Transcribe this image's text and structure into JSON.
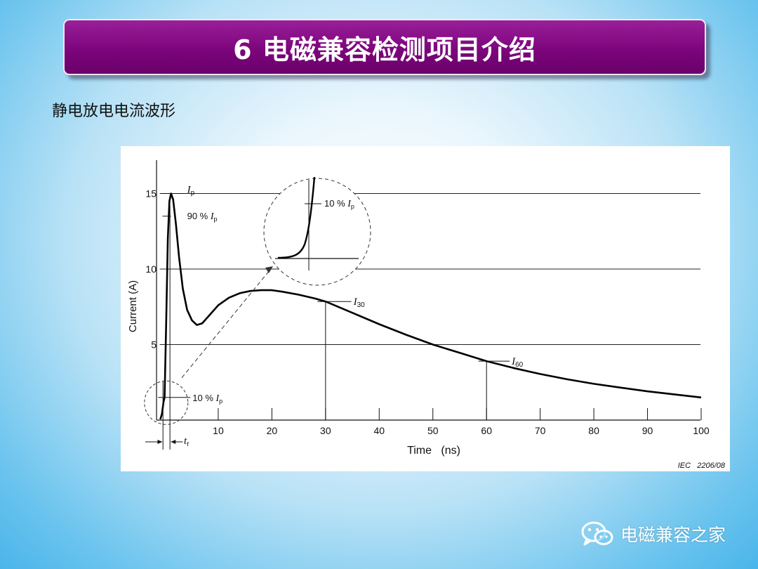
{
  "slide": {
    "title": "6 电磁兼容检测项目介绍",
    "subtitle": "静电放电电流波形",
    "watermark_text": "电磁兼容之家",
    "watermark_icon": "wechat-icon",
    "title_bg": "#7c057c"
  },
  "chart_data": {
    "type": "line",
    "xlabel": "Time   (ns)",
    "ylabel": "Current   (A)",
    "xlim": [
      -3,
      100
    ],
    "ylim": [
      0,
      17
    ],
    "x_ticks": [
      10,
      20,
      30,
      40,
      50,
      60,
      70,
      80,
      90,
      100
    ],
    "y_ticks": [
      5,
      10,
      15
    ],
    "grid_y": [
      5,
      10,
      15
    ],
    "series": [
      {
        "x": [
          -0.8,
          -0.5,
          -0.2,
          0,
          0.3,
          0.6,
          0.9,
          1.2,
          1.6,
          2.1,
          2.7,
          3.4,
          4.2,
          5.1,
          6.0,
          7.0,
          8.0,
          10,
          12,
          14,
          16,
          18,
          20,
          22,
          25,
          28,
          30,
          35,
          40,
          45,
          50,
          55,
          60,
          65,
          70,
          75,
          80,
          85,
          90,
          95,
          100
        ],
        "y": [
          0.05,
          0.4,
          1.2,
          1.5,
          6.5,
          12.0,
          14.5,
          15.0,
          14.6,
          13.0,
          10.8,
          8.7,
          7.3,
          6.6,
          6.3,
          6.4,
          6.8,
          7.6,
          8.1,
          8.4,
          8.55,
          8.6,
          8.6,
          8.5,
          8.3,
          8.05,
          7.85,
          7.1,
          6.35,
          5.65,
          5.0,
          4.45,
          3.9,
          3.45,
          3.05,
          2.7,
          2.4,
          2.15,
          1.9,
          1.7,
          1.5
        ]
      }
    ],
    "annotations": {
      "ip": {
        "symbol": "I",
        "sub": "p",
        "y": 15
      },
      "ip90": {
        "prefix": "90 % ",
        "symbol": "I",
        "sub": "p",
        "y": 13.5
      },
      "ip10": {
        "prefix": "10 % ",
        "symbol": "I",
        "sub": "p",
        "y": 1.5
      },
      "i30": {
        "symbol": "I",
        "sub": "30",
        "x": 30,
        "y": 7.85
      },
      "i60": {
        "symbol": "I",
        "sub": "60",
        "x": 60,
        "y": 3.9
      },
      "tr": {
        "symbol": "t",
        "sub": "r"
      },
      "inset": {
        "prefix": "10 % ",
        "symbol": "I",
        "sub": "p"
      }
    },
    "credit": "IEC   2206/08"
  }
}
